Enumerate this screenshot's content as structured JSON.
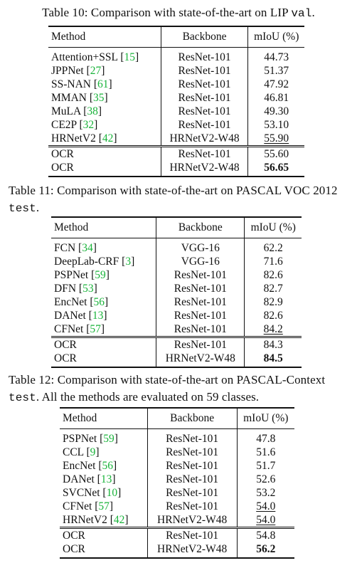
{
  "tables": [
    {
      "caption_prefix": "Table 10: Comparison with state-of-the-art on LIP ",
      "caption_mono": "val",
      "caption_suffix": ".",
      "headers": [
        "Method",
        "Backbone",
        "mIoU (%)"
      ],
      "rows": [
        {
          "method": "Attention+SSL",
          "ref": "15",
          "backbone": "ResNet-101",
          "miou": "44.73"
        },
        {
          "method": "JPPNet",
          "ref": "27",
          "backbone": "ResNet-101",
          "miou": "51.37"
        },
        {
          "method": "SS-NAN",
          "ref": "61",
          "backbone": "ResNet-101",
          "miou": "47.92"
        },
        {
          "method": "MMAN",
          "ref": "35",
          "backbone": "ResNet-101",
          "miou": "46.81"
        },
        {
          "method": "MuLA",
          "ref": "38",
          "backbone": "ResNet-101",
          "miou": "49.30"
        },
        {
          "method": "CE2P",
          "ref": "32",
          "backbone": "ResNet-101",
          "miou": "53.10"
        },
        {
          "method": "HRNetV2",
          "ref": "42",
          "backbone": "HRNetV2-W48",
          "miou": "55.90",
          "underline": true
        }
      ],
      "ours": [
        {
          "method": "OCR",
          "backbone": "ResNet-101",
          "miou": "55.60"
        },
        {
          "method": "OCR",
          "backbone": "HRNetV2-W48",
          "miou": "56.65",
          "bold": true
        }
      ]
    },
    {
      "caption_prefix": "Table 11: Comparison with state-of-the-art on PASCAL VOC 2012 ",
      "caption_mono": "test",
      "caption_suffix": ".",
      "headers": [
        "Method",
        "Backbone",
        "mIoU (%)"
      ],
      "rows": [
        {
          "method": "FCN",
          "ref": "34",
          "backbone": "VGG-16",
          "miou": "62.2"
        },
        {
          "method": "DeepLab-CRF",
          "ref": "3",
          "backbone": "VGG-16",
          "miou": "71.6"
        },
        {
          "method": "PSPNet",
          "ref": "59",
          "backbone": "ResNet-101",
          "miou": "82.6"
        },
        {
          "method": "DFN",
          "ref": "53",
          "backbone": "ResNet-101",
          "miou": "82.7"
        },
        {
          "method": "EncNet",
          "ref": "56",
          "backbone": "ResNet-101",
          "miou": "82.9"
        },
        {
          "method": "DANet",
          "ref": "13",
          "backbone": "ResNet-101",
          "miou": "82.6"
        },
        {
          "method": "CFNet",
          "ref": "57",
          "backbone": "ResNet-101",
          "miou": "84.2",
          "underline": true
        }
      ],
      "ours": [
        {
          "method": "OCR",
          "backbone": "ResNet-101",
          "miou": "84.3"
        },
        {
          "method": "OCR",
          "backbone": "HRNetV2-W48",
          "miou": "84.5",
          "bold": true
        }
      ]
    },
    {
      "caption_prefix": "Table 12: Comparison with state-of-the-art on PASCAL-Context ",
      "caption_mono": "test",
      "caption_suffix": ". All the methods are evaluated on 59 classes.",
      "headers": [
        "Method",
        "Backbone",
        "mIoU (%)"
      ],
      "rows": [
        {
          "method": "PSPNet",
          "ref": "59",
          "backbone": "ResNet-101",
          "miou": "47.8"
        },
        {
          "method": "CCL",
          "ref": "9",
          "backbone": "ResNet-101",
          "miou": "51.6"
        },
        {
          "method": "EncNet",
          "ref": "56",
          "backbone": "ResNet-101",
          "miou": "51.7"
        },
        {
          "method": "DANet",
          "ref": "13",
          "backbone": "ResNet-101",
          "miou": "52.6"
        },
        {
          "method": "SVCNet",
          "ref": "10",
          "backbone": "ResNet-101",
          "miou": "53.2"
        },
        {
          "method": "CFNet",
          "ref": "57",
          "backbone": "ResNet-101",
          "miou": "54.0",
          "underline": true
        },
        {
          "method": "HRNetV2",
          "ref": "42",
          "backbone": "HRNetV2-W48",
          "miou": "54.0",
          "underline": true
        }
      ],
      "ours": [
        {
          "method": "OCR",
          "backbone": "ResNet-101",
          "miou": "54.8"
        },
        {
          "method": "OCR",
          "backbone": "HRNetV2-W48",
          "miou": "56.2",
          "bold": true
        }
      ]
    }
  ],
  "colors": {
    "reference_link": "#19b33a",
    "text": "#111111"
  }
}
